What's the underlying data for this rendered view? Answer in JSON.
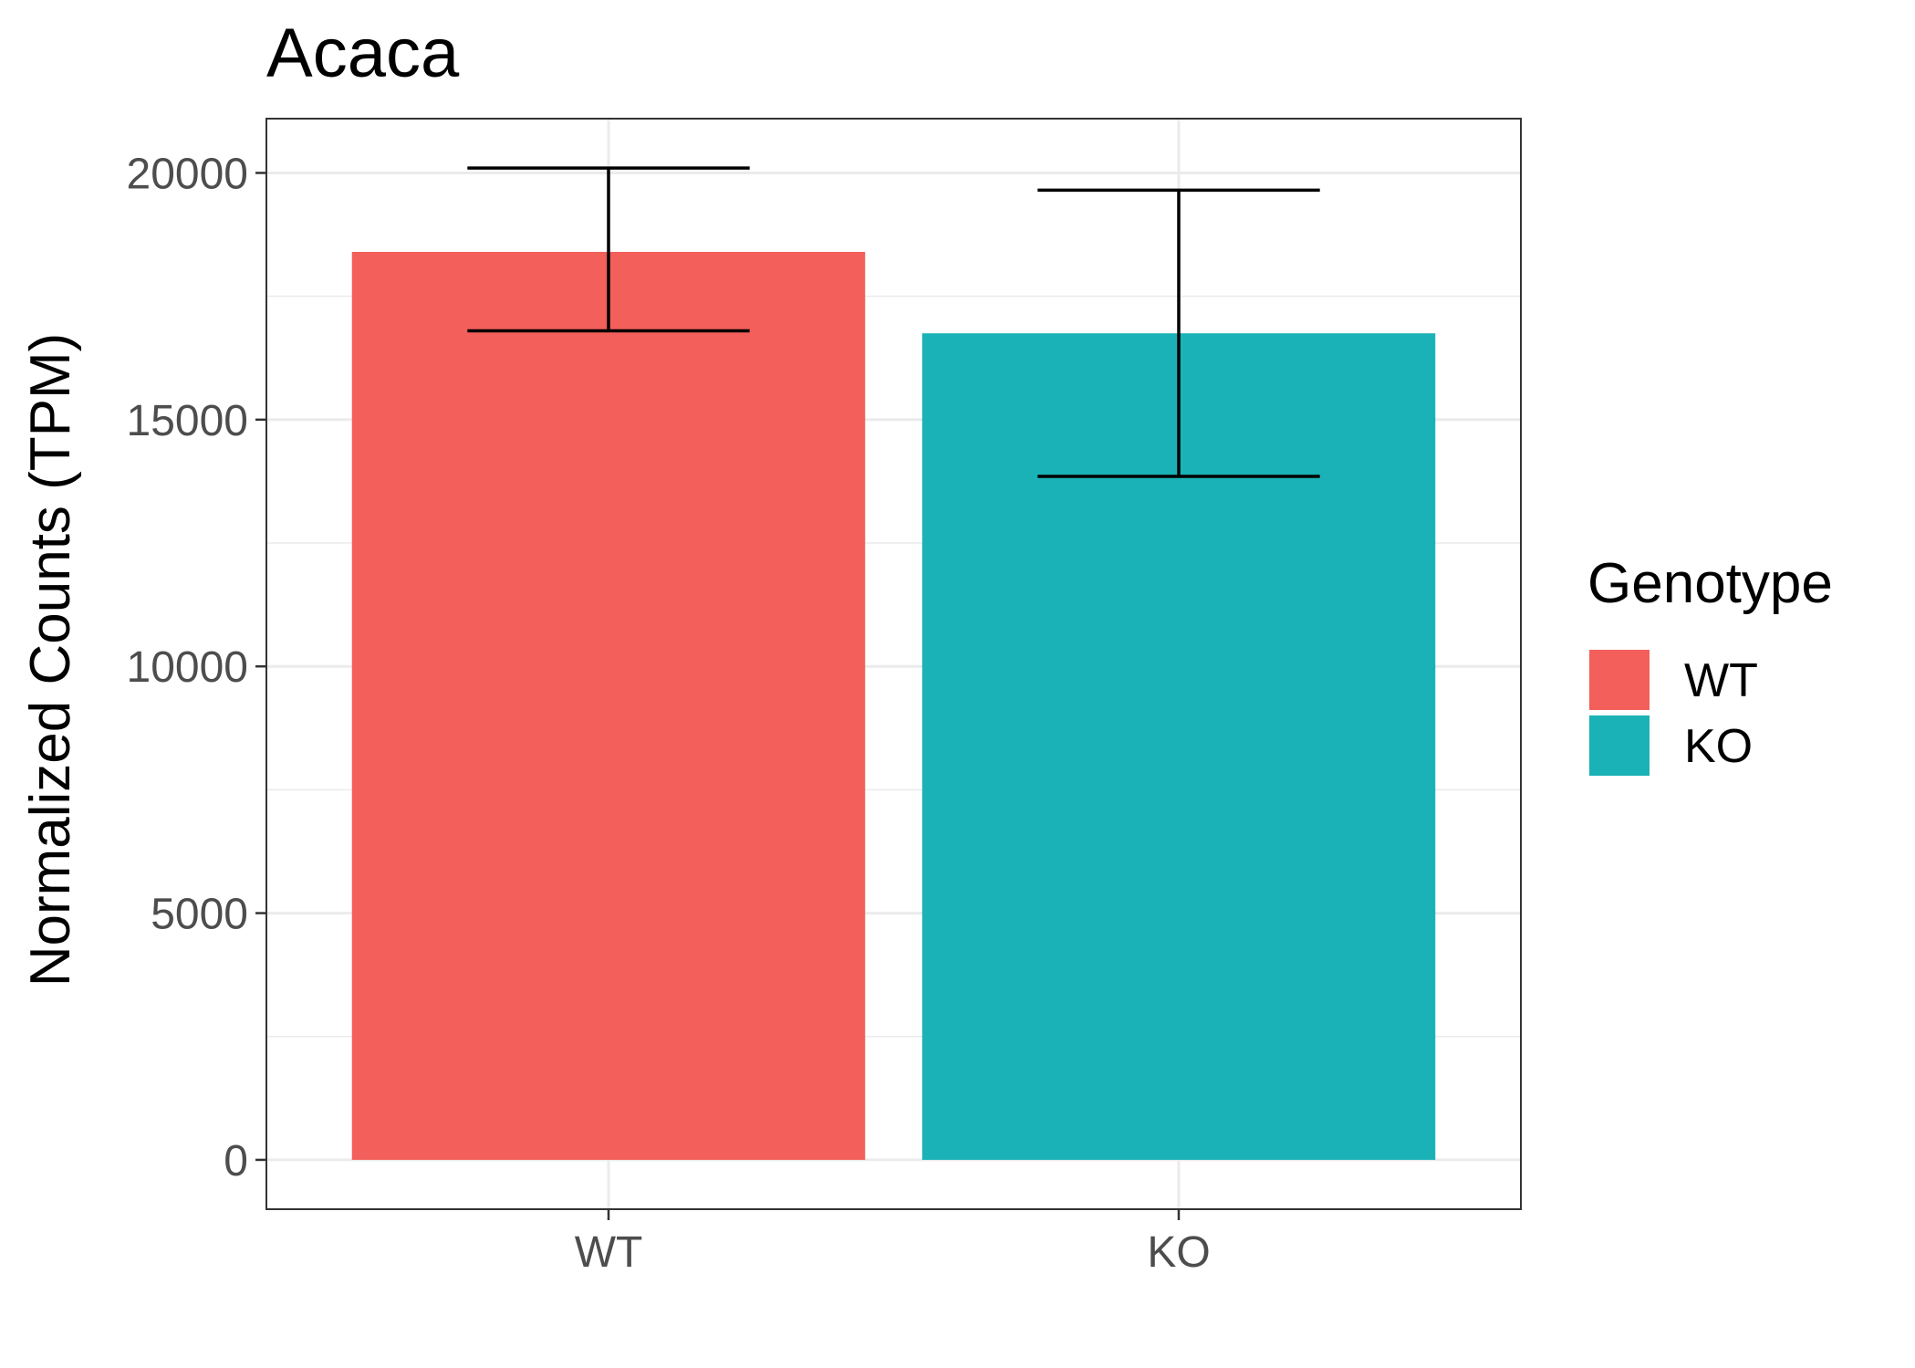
{
  "chart_data": {
    "type": "bar",
    "title": "Acaca",
    "xlabel": "",
    "ylabel": "Normalized Counts (TPM)",
    "categories": [
      "WT",
      "KO"
    ],
    "values": [
      18400,
      16750
    ],
    "error_low": [
      16800,
      13850
    ],
    "error_high": [
      20100,
      19650
    ],
    "colors": [
      "#F35F5A",
      "#1AB2B6"
    ],
    "ylim": [
      -1000,
      21100
    ],
    "yticks": [
      0,
      5000,
      10000,
      15000,
      20000
    ],
    "ytick_labels": [
      "0",
      "5000",
      "10000",
      "15000",
      "20000"
    ],
    "grid": true,
    "legend": {
      "title": "Genotype",
      "position": "right",
      "items": [
        "WT",
        "KO"
      ]
    }
  }
}
